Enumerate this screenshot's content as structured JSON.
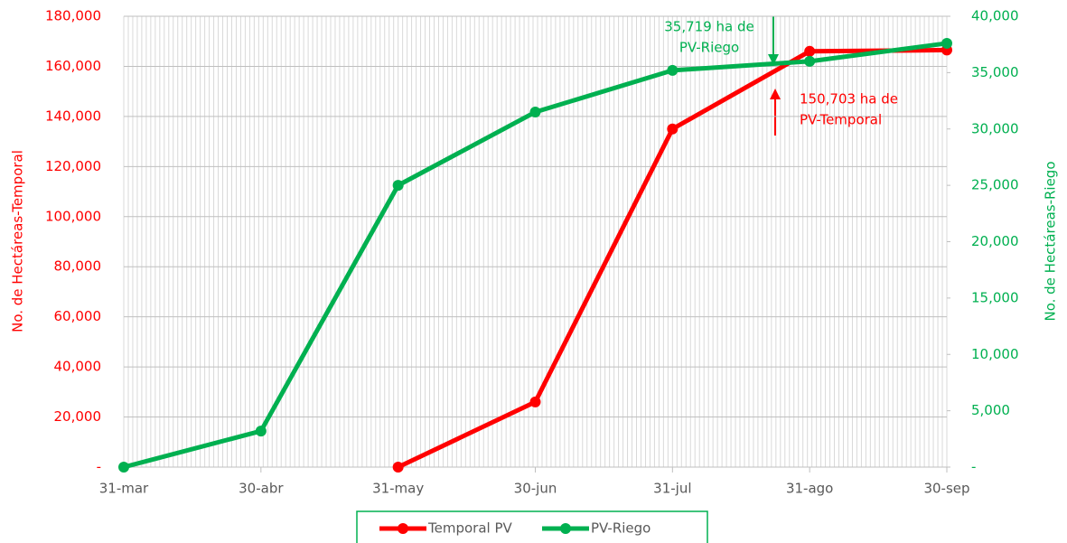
{
  "chart_data": {
    "type": "line",
    "categories": [
      "31-mar",
      "30-abr",
      "31-may",
      "30-jun",
      "31-jul",
      "31-ago",
      "30-sep"
    ],
    "series": [
      {
        "name": "Temporal PV",
        "color": "#ff0000",
        "values": [
          null,
          null,
          0,
          26000,
          135000,
          166000,
          166500
        ]
      },
      {
        "name": "PV-Riego",
        "color": "#00b050",
        "axis": "y2",
        "values": [
          0,
          3200,
          25000,
          31500,
          35200,
          36000,
          37600
        ]
      }
    ],
    "ylabel": "No. de Hectáreas-Temporal",
    "y2label": "No. de Hectáreas-Riego",
    "ylim": [
      0,
      180000
    ],
    "yticks": [
      {
        "value": 0,
        "label": "-"
      },
      {
        "value": 20000,
        "label": "20,000"
      },
      {
        "value": 40000,
        "label": "40,000"
      },
      {
        "value": 60000,
        "label": "60,000"
      },
      {
        "value": 80000,
        "label": "80,000"
      },
      {
        "value": 100000,
        "label": "100,000"
      },
      {
        "value": 120000,
        "label": "120,000"
      },
      {
        "value": 140000,
        "label": "140,000"
      },
      {
        "value": 160000,
        "label": "160,000"
      },
      {
        "value": 180000,
        "label": "180,000"
      }
    ],
    "y2lim": [
      0,
      40000
    ],
    "y2ticks": [
      {
        "value": 0,
        "label": "-"
      },
      {
        "value": 5000,
        "label": "5,000"
      },
      {
        "value": 10000,
        "label": "10,000"
      },
      {
        "value": 15000,
        "label": "15,000"
      },
      {
        "value": 20000,
        "label": "20,000"
      },
      {
        "value": 25000,
        "label": "25,000"
      },
      {
        "value": 30000,
        "label": "30,000"
      },
      {
        "value": 35000,
        "label": "35,000"
      },
      {
        "value": 40000,
        "label": "40,000"
      }
    ],
    "grid": true,
    "legend": "bottom",
    "annotations": [
      {
        "lines": [
          "35,719 ha de",
          "PV-Riego"
        ],
        "color": "#00b050"
      },
      {
        "lines": [
          "150,703 ha de",
          "PV-Temporal"
        ],
        "color": "#ff0000"
      }
    ]
  }
}
